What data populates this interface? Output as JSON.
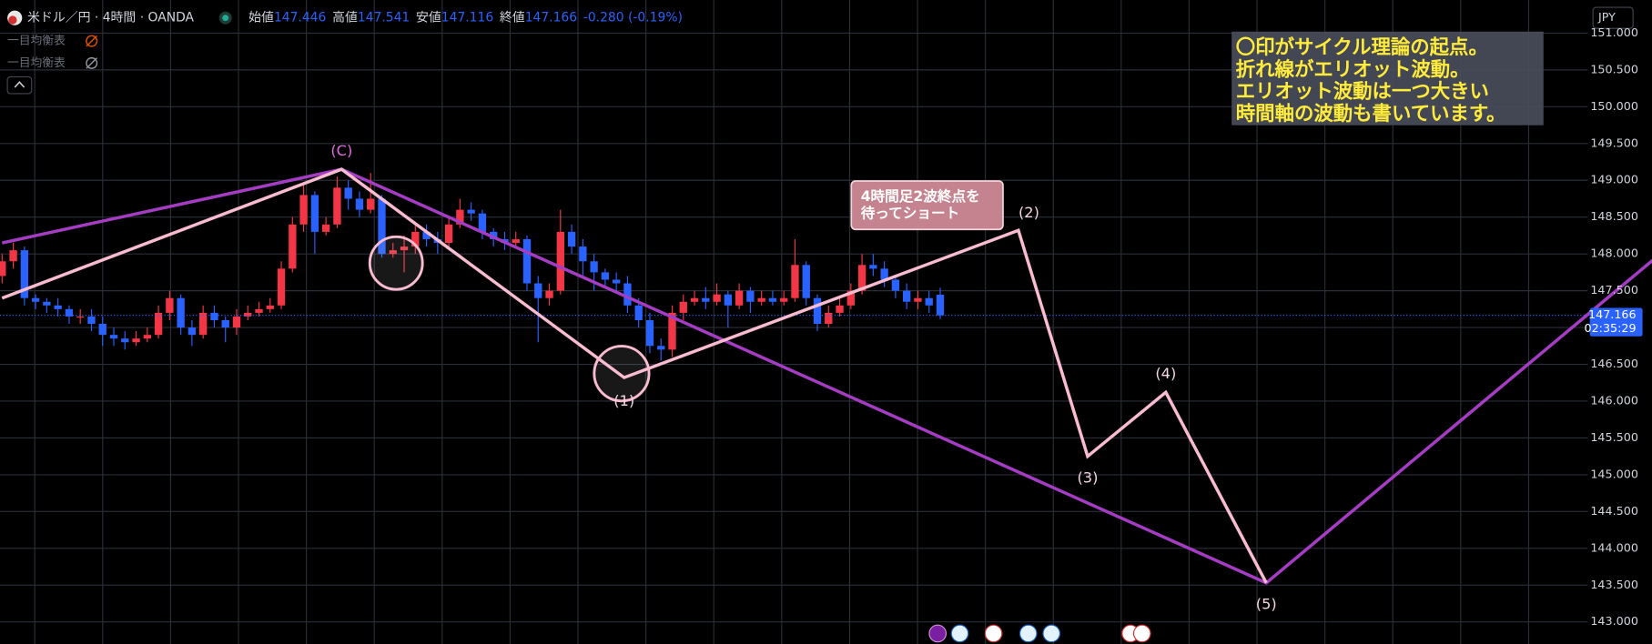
{
  "header": {
    "symbol": "米ドル／円 · 4時間 · OANDA",
    "open_label": "始値",
    "high_label": "高値",
    "low_label": "安値",
    "close_label": "終値",
    "change": "-0.280 (-0.19%)",
    "indicators": [
      "一目均衡表",
      "一目均衡表"
    ],
    "currency": "JPY",
    "countdown": "02:35:29"
  },
  "notes": {
    "box": [
      "〇印がサイクル理論の起点。",
      "折れ線がエリオット波動。",
      "エリオット波動は一つ大きい",
      "時間軸の波動も書いています。"
    ],
    "callout": [
      "4時間足2波終点を",
      "待ってショート"
    ]
  },
  "chart_data": {
    "type": "candlestick",
    "up_color": "#f23645",
    "down_color": "#2962ff",
    "open": [
      147.7,
      147.9,
      148.05,
      147.4,
      147.35,
      147.3,
      147.25,
      147.15,
      147.15,
      147.05,
      146.9,
      146.85,
      146.8,
      146.85,
      146.9,
      147.2,
      147.4,
      147.0,
      146.9,
      147.2,
      147.1,
      147.0,
      147.15,
      147.2,
      147.25,
      147.3,
      147.8,
      148.4,
      148.8,
      148.3,
      148.4,
      148.9,
      148.75,
      148.6,
      148.75,
      148.0,
      148.05,
      148.1,
      148.3,
      148.2,
      148.15,
      148.4,
      148.6,
      148.55,
      148.3,
      148.2,
      148.15,
      148.2,
      147.6,
      147.4,
      147.5,
      148.3,
      148.1,
      147.9,
      147.75,
      147.65,
      147.6,
      147.3,
      147.1,
      146.75,
      146.7,
      147.2,
      147.35,
      147.4,
      147.35,
      147.45,
      147.3,
      147.5,
      147.35,
      147.4,
      147.35,
      147.4,
      147.85,
      147.4,
      147.05,
      147.2,
      147.3,
      147.5,
      147.85,
      147.8,
      147.65,
      147.5,
      147.35,
      147.4,
      147.446
    ],
    "high": [
      148.0,
      148.15,
      148.1,
      147.45,
      147.4,
      147.4,
      147.3,
      147.25,
      147.25,
      147.15,
      147.0,
      146.95,
      146.95,
      147.0,
      147.3,
      147.5,
      147.45,
      147.1,
      147.3,
      147.3,
      147.15,
      147.25,
      147.3,
      147.35,
      147.4,
      147.9,
      148.5,
      148.95,
      148.85,
      148.5,
      149.05,
      149.0,
      148.85,
      149.1,
      148.8,
      148.15,
      148.25,
      148.4,
      148.4,
      148.3,
      148.5,
      148.75,
      148.7,
      148.6,
      148.35,
      148.3,
      148.3,
      148.25,
      147.7,
      147.6,
      148.6,
      148.4,
      148.2,
      148.0,
      147.8,
      147.75,
      147.7,
      147.4,
      147.2,
      146.85,
      147.3,
      147.45,
      147.5,
      147.55,
      147.6,
      147.5,
      147.6,
      147.55,
      147.5,
      147.5,
      147.5,
      148.2,
      147.9,
      147.45,
      147.3,
      147.4,
      147.6,
      148.0,
      148.0,
      147.9,
      147.7,
      147.6,
      147.5,
      147.5,
      147.541
    ],
    "low": [
      147.6,
      147.8,
      147.3,
      147.25,
      147.2,
      147.15,
      147.05,
      147.05,
      146.95,
      146.75,
      146.75,
      146.7,
      146.75,
      146.8,
      146.85,
      147.1,
      146.9,
      146.75,
      146.85,
      147.0,
      146.8,
      146.9,
      147.1,
      147.15,
      147.2,
      147.25,
      147.75,
      148.3,
      148.0,
      148.25,
      148.35,
      148.6,
      148.5,
      148.55,
      147.95,
      147.95,
      147.75,
      148.0,
      148.1,
      148.0,
      148.1,
      148.35,
      148.45,
      148.2,
      148.1,
      148.05,
      148.1,
      147.5,
      146.8,
      147.3,
      147.45,
      148.0,
      147.7,
      147.5,
      147.55,
      147.5,
      147.2,
      147.0,
      146.65,
      146.55,
      146.6,
      147.1,
      147.3,
      147.25,
      147.3,
      147.0,
      147.25,
      147.2,
      147.3,
      147.3,
      147.3,
      147.35,
      147.3,
      146.95,
      147.0,
      147.15,
      147.25,
      147.45,
      147.7,
      147.55,
      147.4,
      147.25,
      147.25,
      147.2,
      147.116
    ],
    "close": [
      147.9,
      148.05,
      147.4,
      147.35,
      147.3,
      147.25,
      147.15,
      147.15,
      147.05,
      146.9,
      146.85,
      146.8,
      146.85,
      146.9,
      147.2,
      147.4,
      147.0,
      146.9,
      147.2,
      147.1,
      147.0,
      147.15,
      147.2,
      147.25,
      147.3,
      147.8,
      148.4,
      148.8,
      148.3,
      148.4,
      148.9,
      148.75,
      148.6,
      148.75,
      148.0,
      148.05,
      148.1,
      148.3,
      148.2,
      148.15,
      148.4,
      148.6,
      148.55,
      148.3,
      148.2,
      148.15,
      148.2,
      147.6,
      147.4,
      147.5,
      148.3,
      148.1,
      147.9,
      147.75,
      147.65,
      147.6,
      147.3,
      147.1,
      146.75,
      146.7,
      147.2,
      147.35,
      147.4,
      147.35,
      147.45,
      147.3,
      147.5,
      147.35,
      147.4,
      147.35,
      147.4,
      147.85,
      147.4,
      147.05,
      147.2,
      147.3,
      147.5,
      147.85,
      147.8,
      147.65,
      147.5,
      147.35,
      147.4,
      147.3,
      147.166
    ],
    "ylim": [
      142.7,
      151.45
    ],
    "yticks": [
      {
        "value": 143,
        "label": "143.000"
      },
      {
        "value": 143.5,
        "label": "143.500"
      },
      {
        "value": 144,
        "label": "144.000"
      },
      {
        "value": 144.5,
        "label": "144.500"
      },
      {
        "value": 145,
        "label": "145.000"
      },
      {
        "value": 145.5,
        "label": "145.500"
      },
      {
        "value": 146,
        "label": "146.000"
      },
      {
        "value": 146.5,
        "label": "146.500"
      },
      {
        "value": 147,
        "label": "147.000"
      },
      {
        "value": 147.5,
        "label": "147.500"
      },
      {
        "value": 148,
        "label": "148.000"
      },
      {
        "value": 148.5,
        "label": "148.500"
      },
      {
        "value": 149,
        "label": "149.000"
      },
      {
        "value": 149.5,
        "label": "149.500"
      },
      {
        "value": 150,
        "label": "150.000"
      },
      {
        "value": 150.5,
        "label": "150.500"
      },
      {
        "value": 151,
        "label": "151.000"
      }
    ],
    "grid": true,
    "wave_lines": [
      {
        "color": "#a53cc4",
        "x": [
          0,
          30.4,
          113.2,
          148
        ],
        "y": [
          148.15,
          149.15,
          143.53,
          147.94
        ],
        "labels": [
          null,
          null,
          null,
          null
        ]
      },
      {
        "color": "#f8bbd0",
        "x": [
          0,
          30.4,
          55.7,
          91,
          97.2,
          104.2,
          113.2
        ],
        "y": [
          147.4,
          149.15,
          146.32,
          148.32,
          145.25,
          146.12,
          143.53
        ],
        "labels": [
          null,
          "(C)",
          "(1)",
          "(2)",
          "(3)",
          "(4)",
          "(5)"
        ]
      }
    ]
  }
}
